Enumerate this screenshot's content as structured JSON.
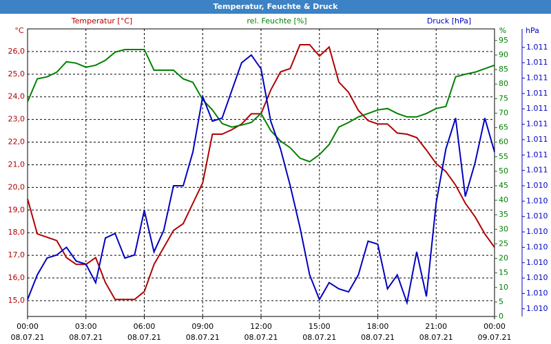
{
  "chart_data": {
    "type": "line",
    "title": "Temperatur, Feuchte & Druck",
    "y_label": "Temperatur [°C]",
    "y_unit": "°C",
    "y2_label": "rel. Feuchte [%]",
    "y2_unit": "%",
    "y3_label": "Druck [hPa]",
    "y3_unit": "hPa",
    "x": [
      0,
      0.5,
      1,
      1.5,
      2,
      2.5,
      3,
      3.5,
      4,
      4.5,
      5,
      5.5,
      6,
      6.5,
      7,
      7.5,
      8,
      8.5,
      9,
      9.5,
      10,
      10.5,
      11,
      11.5,
      12,
      12.5,
      13,
      13.5,
      14,
      14.5,
      15,
      15.5,
      16,
      16.5,
      17,
      17.5,
      18,
      18.5,
      19,
      19.5,
      20,
      20.5,
      21,
      21.5,
      22,
      22.5,
      23,
      23.5,
      24
    ],
    "xlim": [
      0,
      24
    ],
    "xticks": [
      {
        "value": 0,
        "label": "00:00",
        "date": "08.07.21"
      },
      {
        "value": 3,
        "label": "03:00",
        "date": "08.07.21"
      },
      {
        "value": 6,
        "label": "06:00",
        "date": "08.07.21"
      },
      {
        "value": 9,
        "label": "09:00",
        "date": "08.07.21"
      },
      {
        "value": 12,
        "label": "12:00",
        "date": "08.07.21"
      },
      {
        "value": 15,
        "label": "15:00",
        "date": "08.07.21"
      },
      {
        "value": 18,
        "label": "18:00",
        "date": "08.07.21"
      },
      {
        "value": 21,
        "label": "21:00",
        "date": "08.07.21"
      },
      {
        "value": 24,
        "label": "00:00",
        "date": "09.07.21"
      }
    ],
    "ylim": [
      14.3,
      27.0
    ],
    "yticks": [
      {
        "value": 15,
        "label": "15,0"
      },
      {
        "value": 16,
        "label": "16,0"
      },
      {
        "value": 17,
        "label": "17,0"
      },
      {
        "value": 18,
        "label": "18,0"
      },
      {
        "value": 19,
        "label": "19,0"
      },
      {
        "value": 20,
        "label": "20,0"
      },
      {
        "value": 21,
        "label": "21,0"
      },
      {
        "value": 22,
        "label": "22,0"
      },
      {
        "value": 23,
        "label": "23,0"
      },
      {
        "value": 24,
        "label": "24,0"
      },
      {
        "value": 25,
        "label": "25,0"
      },
      {
        "value": 26,
        "label": "26,0"
      }
    ],
    "y2lim": [
      0,
      99
    ],
    "y2ticks": [
      0,
      5,
      10,
      15,
      20,
      25,
      30,
      35,
      40,
      45,
      50,
      55,
      60,
      65,
      70,
      75,
      80,
      85,
      90,
      95
    ],
    "y3lim": [
      1009.55,
      1011.42
    ],
    "y3ticks": [
      {
        "value": 1009.6,
        "label": "1.010"
      },
      {
        "value": 1009.7,
        "label": "1.010"
      },
      {
        "value": 1009.8,
        "label": "1.010"
      },
      {
        "value": 1009.9,
        "label": "1.010"
      },
      {
        "value": 1010.0,
        "label": "1.010"
      },
      {
        "value": 1010.1,
        "label": "1.010"
      },
      {
        "value": 1010.2,
        "label": "1.010"
      },
      {
        "value": 1010.3,
        "label": "1.010"
      },
      {
        "value": 1010.4,
        "label": "1.010"
      },
      {
        "value": 1010.5,
        "label": "1.011"
      },
      {
        "value": 1010.6,
        "label": "1.011"
      },
      {
        "value": 1010.7,
        "label": "1.011"
      },
      {
        "value": 1010.8,
        "label": "1.011"
      },
      {
        "value": 1010.9,
        "label": "1.011"
      },
      {
        "value": 1011.0,
        "label": "1.011"
      },
      {
        "value": 1011.1,
        "label": "1.011"
      },
      {
        "value": 1011.2,
        "label": "1.011"
      },
      {
        "value": 1011.3,
        "label": "1.011"
      }
    ],
    "grid": true,
    "series": [
      {
        "name": "Temperatur [°C]",
        "color": "#b00000",
        "axis": "y",
        "values": [
          19.5,
          17.95,
          17.8,
          17.65,
          16.9,
          16.6,
          16.6,
          16.9,
          15.8,
          15.05,
          15.05,
          15.05,
          15.4,
          16.6,
          17.35,
          18.1,
          18.4,
          19.3,
          20.2,
          22.35,
          22.35,
          22.55,
          22.8,
          23.25,
          23.25,
          24.3,
          25.1,
          25.25,
          26.3,
          26.3,
          25.8,
          26.2,
          24.65,
          24.2,
          23.4,
          22.95,
          22.8,
          22.8,
          22.4,
          22.35,
          22.2,
          21.65,
          21.05,
          20.7,
          20.1,
          19.3,
          18.7,
          17.95,
          17.35
        ]
      },
      {
        "name": "rel. Feuchte [%]",
        "color": "#008000",
        "axis": "y2",
        "values": [
          73.9,
          81.8,
          82.5,
          84.1,
          87.7,
          87.2,
          85.8,
          86.5,
          88.2,
          91,
          91.9,
          91.9,
          91.9,
          84.8,
          84.8,
          84.8,
          81.8,
          80.6,
          74.6,
          71.1,
          66.4,
          65.2,
          65.9,
          66.8,
          69.9,
          64,
          60.4,
          58.1,
          54.5,
          53.3,
          55.7,
          59.2,
          65.2,
          66.8,
          68.7,
          69.9,
          71.1,
          71.6,
          69.9,
          68.7,
          68.7,
          69.9,
          71.6,
          72.3,
          82.5,
          83.4,
          84.1,
          85.3,
          86.5
        ]
      },
      {
        "name": "Druck [hPa]",
        "color": "#0000c0",
        "axis": "y3",
        "values": [
          1009.66,
          1009.82,
          1009.93,
          1009.95,
          1010.0,
          1009.91,
          1009.89,
          1009.77,
          1010.06,
          1010.09,
          1009.93,
          1009.95,
          1010.24,
          1009.97,
          1010.11,
          1010.4,
          1010.4,
          1010.62,
          1010.98,
          1010.82,
          1010.84,
          1011.02,
          1011.2,
          1011.25,
          1011.16,
          1010.82,
          1010.64,
          1010.4,
          1010.13,
          1009.82,
          1009.66,
          1009.77,
          1009.73,
          1009.71,
          1009.82,
          1010.04,
          1010.02,
          1009.73,
          1009.82,
          1009.64,
          1009.97,
          1009.68,
          1010.29,
          1010.64,
          1010.84,
          1010.33,
          1010.55,
          1010.84,
          1010.62
        ]
      }
    ]
  }
}
